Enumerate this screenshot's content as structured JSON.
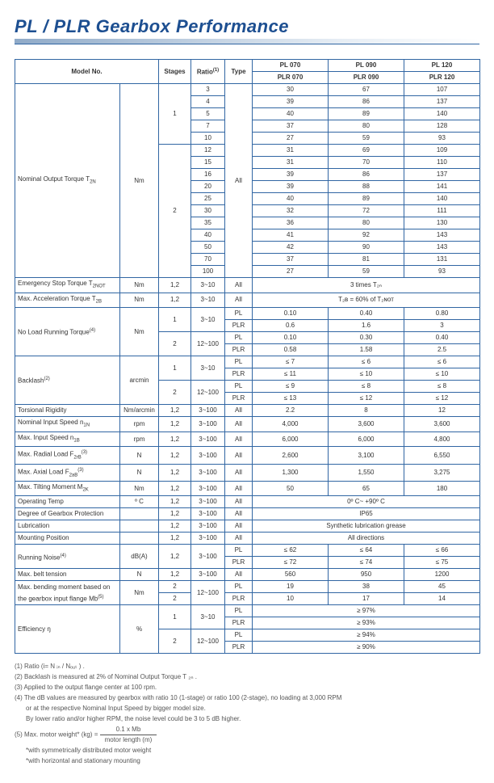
{
  "title": "PL / PLR  Gearbox Performance",
  "header": {
    "model_no": "Model No.",
    "stages": "Stages",
    "ratio": "Ratio",
    "ratio_sup": "(1)",
    "type": "Type",
    "models_top": [
      "PL 070",
      "PL 090",
      "PL 120"
    ],
    "models_sub": [
      "PLR 070",
      "PLR 090",
      "PLR 120"
    ]
  },
  "nominal_torque": {
    "label": "Nominal Output Torque T",
    "label_sub": "2N",
    "unit": "Nm",
    "type": "All",
    "stage1_rows": [
      {
        "ratio": 3,
        "v": [
          30,
          67,
          107
        ]
      },
      {
        "ratio": 4,
        "v": [
          39,
          86,
          137
        ]
      },
      {
        "ratio": 5,
        "v": [
          40,
          89,
          140
        ]
      },
      {
        "ratio": 7,
        "v": [
          37,
          80,
          128
        ]
      },
      {
        "ratio": 10,
        "v": [
          27,
          59,
          93
        ]
      }
    ],
    "stage2_rows": [
      {
        "ratio": 12,
        "v": [
          31,
          69,
          109
        ]
      },
      {
        "ratio": 15,
        "v": [
          31,
          70,
          110
        ]
      },
      {
        "ratio": 16,
        "v": [
          39,
          86,
          137
        ]
      },
      {
        "ratio": 20,
        "v": [
          39,
          88,
          141
        ]
      },
      {
        "ratio": 25,
        "v": [
          40,
          89,
          140
        ]
      },
      {
        "ratio": 30,
        "v": [
          32,
          72,
          111
        ]
      },
      {
        "ratio": 35,
        "v": [
          36,
          80,
          130
        ]
      },
      {
        "ratio": 40,
        "v": [
          41,
          92,
          143
        ]
      },
      {
        "ratio": 50,
        "v": [
          42,
          90,
          143
        ]
      },
      {
        "ratio": 70,
        "v": [
          37,
          81,
          131
        ]
      },
      {
        "ratio": 100,
        "v": [
          27,
          59,
          93
        ]
      }
    ]
  },
  "simple_rows": [
    {
      "label": "Emergency Stop Torque T",
      "label_sub": "2NOT",
      "unit": "Nm",
      "stages": "1,2",
      "ratio": "3~10",
      "type": "All",
      "span": "3 times T₂ₙ"
    },
    {
      "label": "Max. Acceleration Torque T",
      "label_sub": "2B",
      "unit": "Nm",
      "stages": "1,2",
      "ratio": "3~10",
      "type": "All",
      "span": "T₂в = 60% of T₂ɴᴏᴛ"
    }
  ],
  "no_load": {
    "label": "No Load Running Torque",
    "label_sup": "(4)",
    "unit": "Nm",
    "rows": [
      {
        "stages": "1",
        "ratio": "3~10",
        "type": "PL",
        "v": [
          "0.10",
          "0.40",
          "0.80"
        ]
      },
      {
        "type": "PLR",
        "v": [
          "0.6",
          "1.6",
          "3"
        ]
      },
      {
        "stages": "2",
        "ratio": "12~100",
        "type": "PL",
        "v": [
          "0.10",
          "0.30",
          "0.40"
        ]
      },
      {
        "type": "PLR",
        "v": [
          "0.58",
          "1.58",
          "2.5"
        ]
      }
    ]
  },
  "backlash": {
    "label": "Backlash",
    "label_sup": "(2)",
    "unit": "arcmin",
    "rows": [
      {
        "stages": "1",
        "ratio": "3~10",
        "type": "PL",
        "v": [
          "≤ 7",
          "≤ 6",
          "≤ 6"
        ]
      },
      {
        "type": "PLR",
        "v": [
          "≤ 11",
          "≤ 10",
          "≤ 10"
        ]
      },
      {
        "stages": "2",
        "ratio": "12~100",
        "type": "PL",
        "v": [
          "≤ 9",
          "≤ 8",
          "≤ 8"
        ]
      },
      {
        "type": "PLR",
        "v": [
          "≤ 13",
          "≤ 12",
          "≤ 12"
        ]
      }
    ]
  },
  "basic_rows": [
    {
      "label": "Torsional Rigidity",
      "unit": "Nm/arcmin",
      "stages": "1,2",
      "ratio": "3~100",
      "type": "All",
      "v": [
        "2.2",
        "8",
        "12"
      ]
    },
    {
      "label": "Nominal Input Speed n",
      "label_sub": "1N",
      "unit": "rpm",
      "stages": "1,2",
      "ratio": "3~100",
      "type": "All",
      "v": [
        "4,000",
        "3,600",
        "3,600"
      ]
    },
    {
      "label": "Max. Input Speed n",
      "label_sub": "1B",
      "unit": "rpm",
      "stages": "1,2",
      "ratio": "3~100",
      "type": "All",
      "v": [
        "6,000",
        "6,000",
        "4,800"
      ]
    },
    {
      "label": "Max. Radial Load F",
      "label_sub": "2rB",
      "label_sup": "(3)",
      "unit": "N",
      "stages": "1,2",
      "ratio": "3~100",
      "type": "All",
      "v": [
        "2,600",
        "3,100",
        "6,550"
      ]
    },
    {
      "label": "Max. Axial Load F",
      "label_sub": "2aB",
      "label_sup": "(3)",
      "unit": "N",
      "stages": "1,2",
      "ratio": "3~100",
      "type": "All",
      "v": [
        "1,300",
        "1,550",
        "3,275"
      ]
    },
    {
      "label": "Max. Tilting Moment M",
      "label_sub": "2K",
      "unit": "Nm",
      "stages": "1,2",
      "ratio": "3~100",
      "type": "All",
      "v": [
        "50",
        "65",
        "180"
      ]
    }
  ],
  "merged_rows": [
    {
      "label": "Operating Temp",
      "unit": "º C",
      "stages": "1,2",
      "ratio": "3~100",
      "type": "All",
      "span": "0º C~ +90º C"
    },
    {
      "label": "Degree of Gearbox  Protection",
      "unit": "",
      "stages": "1,2",
      "ratio": "3~100",
      "type": "All",
      "span": "IP65"
    },
    {
      "label": "Lubrication",
      "unit": "",
      "stages": "1,2",
      "ratio": "3~100",
      "type": "All",
      "span": "Synthetic lubrication grease"
    },
    {
      "label": "Mounting Position",
      "unit": "",
      "stages": "1,2",
      "ratio": "3~100",
      "type": "All",
      "span": "All directions"
    }
  ],
  "running_noise": {
    "label": "Running Noise",
    "label_sup": "(4)",
    "unit": "dB(A)",
    "stages": "1,2",
    "ratio": "3~100",
    "rows": [
      {
        "type": "PL",
        "v": [
          "≤ 62",
          "≤ 64",
          "≤ 66"
        ]
      },
      {
        "type": "PLR",
        "v": [
          "≤ 72",
          "≤ 74",
          "≤ 75"
        ]
      }
    ]
  },
  "belt_tension": {
    "label": "Max. belt tension",
    "unit": "N",
    "stages": "1,2",
    "ratio": "3~100",
    "type": "All",
    "v": [
      "560",
      "950",
      "1200"
    ]
  },
  "bending": {
    "label": "Max. bending moment based on the gearbox input flange Mb",
    "label_sup": "(5)",
    "unit": "Nm",
    "ratio": "12~100",
    "rows": [
      {
        "stages": "2",
        "type": "PL",
        "v": [
          "19",
          "38",
          "45"
        ]
      },
      {
        "stages": "2",
        "type": "PLR",
        "v": [
          "10",
          "17",
          "14"
        ]
      }
    ]
  },
  "efficiency": {
    "label": "Efficiency ŋ",
    "unit": "%",
    "rows": [
      {
        "stages": "1",
        "ratio": "3~10",
        "type": "PL",
        "span": "≥ 97%"
      },
      {
        "type": "PLR",
        "span": "≥ 93%"
      },
      {
        "stages": "2",
        "ratio": "12~100",
        "type": "PL",
        "span": "≥ 94%"
      },
      {
        "type": "PLR",
        "span": "≥ 90%"
      }
    ]
  },
  "notes": {
    "n1": "(1) Ratio (i= N ᵢₙ / Nₒᵤₜ ) .",
    "n2": "(2) Backlash is measured at 2% of Nominal Output Torque T        ₂ₙ .",
    "n3": "(3) Applied to the output flange center at 100 rpm.",
    "n4a": "(4) The dB values are measured by gearbox with ratio 10 (1-stage) or ratio 100 (2-stage), no loading at 3,000 RPM",
    "n4b": "or at the respective Nominal Input Speed by bigger model size.",
    "n4c": "By lower ratio and/or higher RPM, the noise level could be 3 to 5 dB higher.",
    "n5_label": "(5) Max. motor weight* (kg) = ",
    "n5_top": "0.1 x Mb",
    "n5_bot": "motor length (m)",
    "n5a": "*with symmetrically distributed motor weight",
    "n5b": "*with horizontal and stationary mounting"
  }
}
